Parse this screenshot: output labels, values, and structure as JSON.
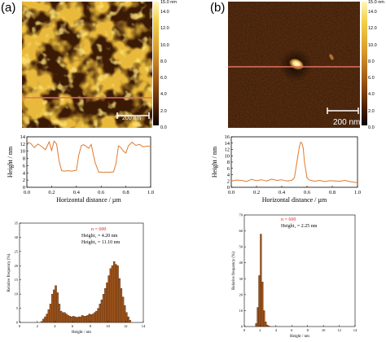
{
  "panels": [
    {
      "label": "(a)",
      "scale_bar": "200 nm",
      "colorbar_ticks": [
        "15.0 nm",
        "14.0",
        "12.0",
        "10.0",
        "8.0",
        "6.0",
        "4.0",
        "2.0",
        "0.0"
      ],
      "colors": {
        "afm_dark": "#3b1a05",
        "afm_bright": "#f2cc3a",
        "profile_line": "#e07a2c",
        "hist_bar": "#a0551c"
      },
      "profile": {
        "ylabel": "Height / nm",
        "xlabel": "Horizontal distance / µm",
        "yticks": [
          "14",
          "12",
          "10",
          "8",
          "6",
          "4",
          "2",
          "0"
        ],
        "xticks": [
          "0.0",
          "0.2",
          "0.4",
          "0.6",
          "0.8",
          "1.0"
        ]
      },
      "histogram": {
        "n_text": "n = 600",
        "height1_text": "Height₁ = 4.20 nm",
        "height2_text": "Height₂ = 11.10 nm",
        "ylabel": "Relative frequency (%)",
        "xlabel": "Height / nm",
        "yticks": [
          "35",
          "30",
          "25",
          "20",
          "15",
          "10",
          "5",
          "0"
        ],
        "xticks": [
          "0",
          "2",
          "4",
          "6",
          "8",
          "10",
          "12",
          "14"
        ]
      }
    },
    {
      "label": "(b)",
      "scale_bar": "200 nm",
      "colorbar_ticks": [
        "15.0 nm",
        "14.0",
        "12.0",
        "10.0",
        "8.0",
        "6.0",
        "4.0",
        "2.0",
        "0.0"
      ],
      "profile": {
        "ylabel": "Height / nm",
        "xlabel": "Horizontal distance / µm",
        "yticks": [
          "16",
          "14",
          "12",
          "10",
          "8",
          "6",
          "4",
          "2",
          "0"
        ],
        "xticks": [
          "0.0",
          "0.2",
          "0.4",
          "0.6",
          "0.8",
          "1.0"
        ]
      },
      "histogram": {
        "n_text": "n = 600",
        "height1_text": "Height₁ = 2.25 nm",
        "ylabel": "Relative frequency (%)",
        "xlabel": "Height / nm",
        "yticks": [
          "70",
          "60",
          "50",
          "40",
          "30",
          "20",
          "10",
          "0"
        ],
        "xticks": [
          "0",
          "2",
          "4",
          "6",
          "8",
          "10",
          "12",
          "14"
        ]
      }
    }
  ],
  "chart_data": [
    {
      "type": "line",
      "panel": "(a)",
      "xlabel": "Horizontal distance / µm",
      "ylabel": "Height / nm",
      "xlim": [
        0,
        1.0
      ],
      "ylim": [
        0,
        14
      ],
      "x": [
        0.0,
        0.03,
        0.06,
        0.09,
        0.12,
        0.15,
        0.18,
        0.2,
        0.22,
        0.24,
        0.26,
        0.28,
        0.3,
        0.33,
        0.36,
        0.38,
        0.4,
        0.42,
        0.44,
        0.46,
        0.48,
        0.5,
        0.52,
        0.55,
        0.58,
        0.6,
        0.62,
        0.64,
        0.66,
        0.68,
        0.7,
        0.72,
        0.74,
        0.76,
        0.78,
        0.8,
        0.82,
        0.85,
        0.88,
        0.91,
        0.94,
        0.97,
        1.0
      ],
      "y": [
        12.5,
        12.2,
        11.0,
        12.0,
        11.3,
        10.4,
        12.6,
        10.2,
        12.8,
        12.0,
        7.4,
        4.6,
        4.5,
        4.6,
        4.5,
        4.6,
        4.7,
        9.0,
        11.6,
        11.8,
        11.3,
        10.8,
        11.9,
        7.0,
        4.2,
        4.2,
        4.1,
        4.2,
        4.1,
        4.2,
        4.3,
        6.5,
        11.5,
        11.0,
        10.0,
        9.5,
        11.5,
        12.5,
        11.6,
        11.9,
        11.2,
        11.4,
        11.3
      ]
    },
    {
      "type": "bar",
      "panel": "(a)",
      "title": "",
      "xlabel": "Height / nm",
      "ylabel": "Relative frequency (%)",
      "xlim": [
        0,
        14
      ],
      "ylim": [
        0,
        35
      ],
      "bin_width": 0.2,
      "x": [
        2.5,
        2.7,
        2.9,
        3.1,
        3.3,
        3.5,
        3.7,
        3.9,
        4.1,
        4.3,
        4.5,
        4.7,
        4.9,
        5.1,
        5.3,
        5.5,
        5.7,
        5.9,
        6.1,
        6.3,
        6.5,
        6.7,
        6.9,
        7.1,
        7.3,
        7.5,
        7.7,
        7.9,
        8.1,
        8.3,
        8.5,
        8.7,
        8.9,
        9.1,
        9.3,
        9.5,
        9.7,
        9.9,
        10.1,
        10.3,
        10.5,
        10.7,
        10.9,
        11.1,
        11.3,
        11.5,
        11.7,
        11.9,
        12.1,
        12.3,
        12.5
      ],
      "values": [
        0.4,
        1.2,
        2.0,
        3.0,
        4.5,
        6.5,
        10.0,
        11.5,
        13.0,
        10.5,
        6.5,
        4.0,
        3.5,
        3.5,
        3.0,
        2.5,
        2.2,
        2.0,
        2.2,
        2.0,
        1.8,
        2.0,
        2.0,
        2.5,
        2.2,
        2.2,
        2.5,
        3.0,
        2.8,
        3.0,
        3.5,
        4.0,
        5.0,
        6.5,
        8.0,
        10.0,
        12.0,
        14.0,
        16.5,
        19.0,
        20.0,
        21.5,
        20.5,
        20.0,
        15.5,
        12.0,
        9.0,
        6.0,
        3.5,
        2.0,
        0.8
      ]
    },
    {
      "type": "line",
      "panel": "(b)",
      "xlabel": "Horizontal distance / µm",
      "ylabel": "Height / nm",
      "xlim": [
        0,
        1.0
      ],
      "ylim": [
        0,
        16
      ],
      "x": [
        0.0,
        0.04,
        0.08,
        0.12,
        0.16,
        0.2,
        0.24,
        0.28,
        0.32,
        0.36,
        0.4,
        0.44,
        0.48,
        0.5,
        0.52,
        0.54,
        0.55,
        0.56,
        0.57,
        0.58,
        0.6,
        0.62,
        0.66,
        0.7,
        0.74,
        0.78,
        0.82,
        0.86,
        0.9,
        0.94,
        0.97,
        1.0
      ],
      "y": [
        2.0,
        2.3,
        2.2,
        1.8,
        2.5,
        2.1,
        2.4,
        2.0,
        2.6,
        2.2,
        2.4,
        2.0,
        2.2,
        3.0,
        8.0,
        13.0,
        14.3,
        14.0,
        12.5,
        8.0,
        3.0,
        2.3,
        1.9,
        2.2,
        1.8,
        2.1,
        2.0,
        1.9,
        2.2,
        1.8,
        1.6,
        1.5
      ]
    },
    {
      "type": "bar",
      "panel": "(b)",
      "title": "",
      "xlabel": "Height / nm",
      "ylabel": "Relative frequency (%)",
      "xlim": [
        0,
        14
      ],
      "ylim": [
        0,
        70
      ],
      "bin_width": 0.2,
      "x": [
        1.5,
        1.7,
        1.9,
        2.1,
        2.3,
        2.5,
        2.7,
        2.9,
        3.1
      ],
      "values": [
        2.0,
        12.0,
        32.0,
        58.0,
        28.0,
        10.0,
        3.0,
        1.0,
        0.4
      ]
    }
  ]
}
